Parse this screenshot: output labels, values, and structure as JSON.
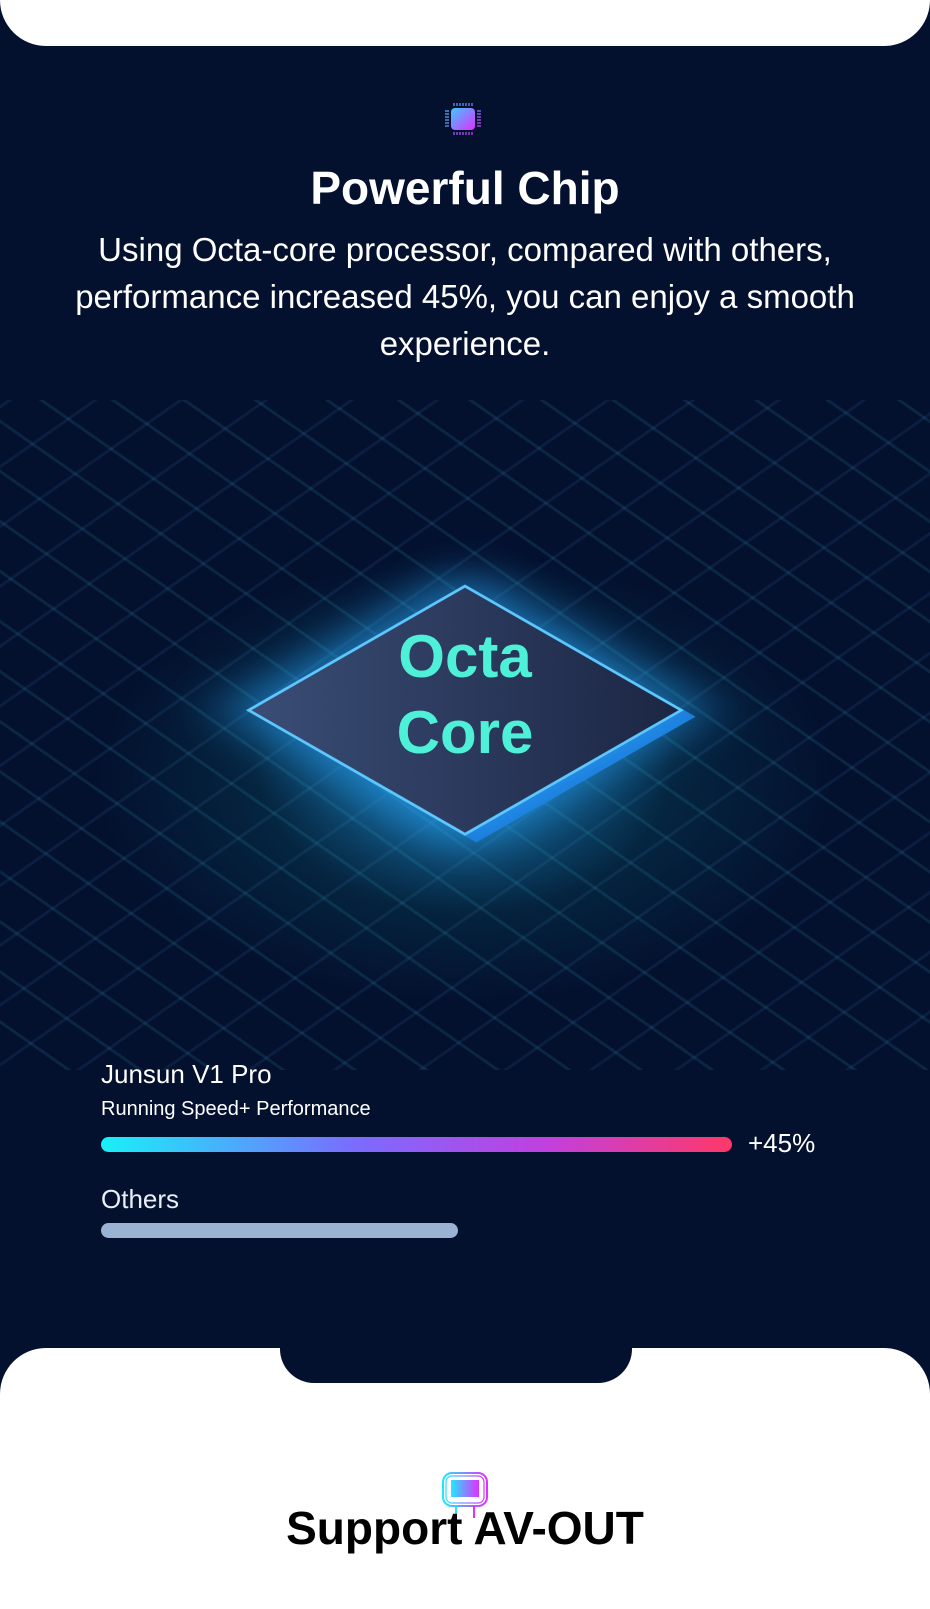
{
  "chip_section": {
    "icon": "processor-chip-icon",
    "title": "Powerful Chip",
    "description": "Using Octa-core processor, compared with others, performance increased 45%, you can enjoy a smooth experience.",
    "image_text": [
      "Octa",
      "Core"
    ],
    "comparison": {
      "product": {
        "name": "Junsun V1 Pro",
        "metric": "Running Speed+ Performance",
        "label": "+45%",
        "relative_value": 145,
        "gradient": [
          "#18f0f8",
          "#7a6cff",
          "#c040e0",
          "#ff3868"
        ]
      },
      "others": {
        "name": "Others",
        "relative_value": 100,
        "color": "#9bb3d2"
      }
    }
  },
  "av_section": {
    "icon": "headrest-monitor-icon",
    "title": "Support AV-OUT"
  },
  "colors": {
    "background": "#03102e",
    "text": "#ffffff"
  }
}
